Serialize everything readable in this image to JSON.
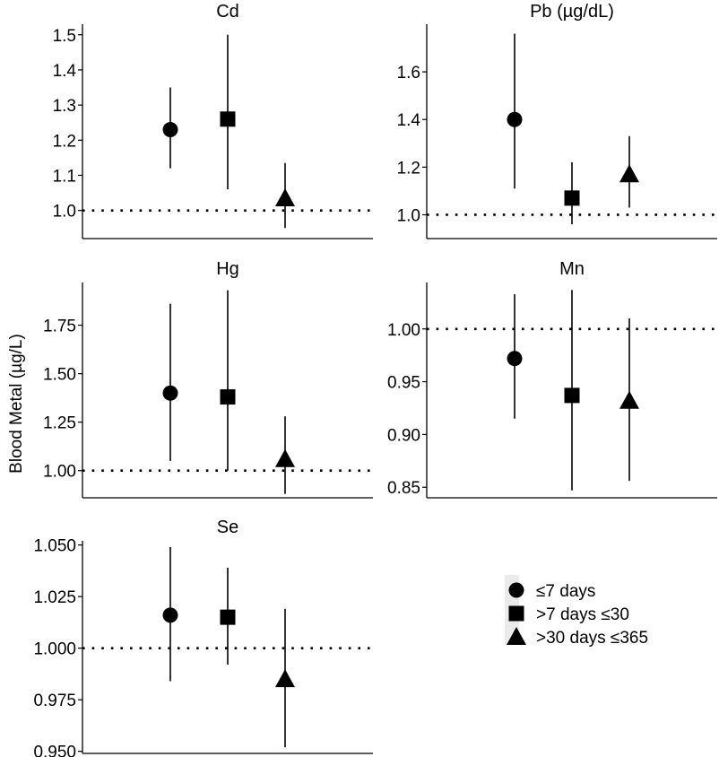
{
  "figure": {
    "ylabel": "Blood Metal (µg/L)",
    "reference_line": 1.0,
    "marker_color": "#000000"
  },
  "legend": {
    "items": [
      {
        "label": "≤7 days",
        "marker": "circle"
      },
      {
        "label": ">7 days ≤30",
        "marker": "square"
      },
      {
        "label": ">30 days ≤365",
        "marker": "triangle"
      }
    ]
  },
  "chart_data": [
    {
      "type": "scatter",
      "title": "Cd",
      "categories": [
        "≤7 days",
        ">7 days ≤30",
        ">30 days ≤365"
      ],
      "ylim": [
        0.92,
        1.53
      ],
      "yticks": [
        1.0,
        1.1,
        1.2,
        1.3,
        1.4,
        1.5
      ],
      "ytick_labels": [
        "1.0",
        "1.1",
        "1.2",
        "1.3",
        "1.4",
        "1.5"
      ],
      "values": [
        1.23,
        1.26,
        1.035
      ],
      "lower": [
        1.12,
        1.06,
        0.95
      ],
      "upper": [
        1.35,
        1.5,
        1.135
      ]
    },
    {
      "type": "scatter",
      "title": "Pb (µg/dL)",
      "categories": [
        "≤7 days",
        ">7 days ≤30",
        ">30 days ≤365"
      ],
      "ylim": [
        0.9,
        1.8
      ],
      "yticks": [
        1.0,
        1.2,
        1.4,
        1.6
      ],
      "ytick_labels": [
        "1.0",
        "1.2",
        "1.4",
        "1.6"
      ],
      "values": [
        1.4,
        1.07,
        1.17
      ],
      "lower": [
        1.11,
        0.96,
        1.03
      ],
      "upper": [
        1.76,
        1.22,
        1.33
      ]
    },
    {
      "type": "scatter",
      "title": "Hg",
      "categories": [
        "≤7 days",
        ">7 days ≤30",
        ">30 days ≤365"
      ],
      "ylim": [
        0.86,
        1.97
      ],
      "yticks": [
        1.0,
        1.25,
        1.5,
        1.75
      ],
      "ytick_labels": [
        "1.00",
        "1.25",
        "1.50",
        "1.75"
      ],
      "values": [
        1.4,
        1.38,
        1.06
      ],
      "lower": [
        1.05,
        1.0,
        0.88
      ],
      "upper": [
        1.86,
        1.93,
        1.28
      ]
    },
    {
      "type": "scatter",
      "title": "Mn",
      "categories": [
        "≤7 days",
        ">7 days ≤30",
        ">30 days ≤365"
      ],
      "ylim": [
        0.84,
        1.044
      ],
      "yticks": [
        0.85,
        0.9,
        0.95,
        1.0
      ],
      "ytick_labels": [
        "0.85",
        "0.90",
        "0.95",
        "1.00"
      ],
      "values": [
        0.972,
        0.937,
        0.932
      ],
      "lower": [
        0.915,
        0.847,
        0.856
      ],
      "upper": [
        1.033,
        1.037,
        1.01
      ]
    },
    {
      "type": "scatter",
      "title": "Se",
      "categories": [
        "≤7 days",
        ">7 days ≤30",
        ">30 days ≤365"
      ],
      "ylim": [
        0.949,
        1.052
      ],
      "yticks": [
        0.95,
        0.975,
        1.0,
        1.025,
        1.05
      ],
      "ytick_labels": [
        "0.950",
        "0.975",
        "1.000",
        "1.025",
        "1.050"
      ],
      "values": [
        1.016,
        1.015,
        0.985
      ],
      "lower": [
        0.984,
        0.992,
        0.952
      ],
      "upper": [
        1.049,
        1.039,
        1.019
      ]
    }
  ]
}
